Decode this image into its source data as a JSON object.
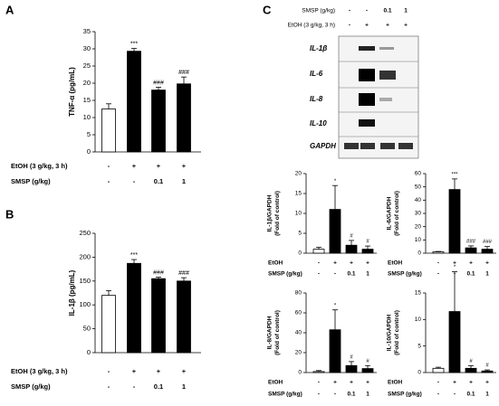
{
  "chart_data": [
    {
      "type": "bar",
      "panel": "A",
      "ylabel": [
        "TNF-α (pg/mL)"
      ],
      "values": [
        12.5,
        29.3,
        18,
        19.8
      ],
      "errors": [
        1.5,
        0.8,
        0.8,
        2
      ],
      "annotations": [
        null,
        "***",
        "###",
        "###"
      ],
      "colors": [
        "#ffffff",
        "#000000",
        "#000000",
        "#000000"
      ],
      "ylim": [
        0,
        35
      ],
      "yticks": [
        0,
        5,
        10,
        15,
        20,
        25,
        30,
        35
      ],
      "rows": [
        {
          "label": "EtOH (3 g/kg, 3 h)",
          "values": [
            "-",
            "+",
            "+",
            "+"
          ]
        },
        {
          "label": "SMSP (g/kg)",
          "values": [
            "-",
            "-",
            "0.1",
            "1"
          ]
        }
      ]
    },
    {
      "type": "bar",
      "panel": "B",
      "ylabel": [
        "IL-1β (pg/mL)"
      ],
      "values": [
        120,
        187,
        155,
        150
      ],
      "errors": [
        10,
        8,
        3,
        7
      ],
      "annotations": [
        null,
        "***",
        "###",
        "###"
      ],
      "colors": [
        "#ffffff",
        "#000000",
        "#000000",
        "#000000"
      ],
      "ylim": [
        0,
        250
      ],
      "yticks": [
        0,
        50,
        100,
        150,
        200,
        250
      ],
      "rows": [
        {
          "label": "EtOH (3 g/kg, 3 h)",
          "values": [
            "-",
            "+",
            "+",
            "+"
          ]
        },
        {
          "label": "SMSP (g/kg)",
          "values": [
            "-",
            "-",
            "0.1",
            "1"
          ]
        }
      ]
    },
    {
      "type": "bar",
      "ylabel": [
        "IL-1β/GAPDH",
        "(Fold of control)"
      ],
      "values": [
        1,
        11,
        2,
        1
      ],
      "errors": [
        0.5,
        6,
        1.2,
        0.8
      ],
      "annotations": [
        null,
        "*",
        "#",
        "#"
      ],
      "colors": [
        "#ffffff",
        "#000000",
        "#000000",
        "#000000"
      ],
      "ylim": [
        0,
        20
      ],
      "yticks": [
        0,
        5,
        10,
        15,
        20
      ],
      "rows": [
        {
          "label": "EtOH",
          "values": [
            "-",
            "+",
            "+",
            "+"
          ]
        },
        {
          "label": "SMSP (g/kg)",
          "values": [
            "-",
            "-",
            "0.1",
            "1"
          ]
        }
      ]
    },
    {
      "type": "bar",
      "ylabel": [
        "IL-6/GAPDH",
        "(Fold of control)"
      ],
      "values": [
        1,
        48,
        4,
        3
      ],
      "errors": [
        0.3,
        8,
        1.5,
        2
      ],
      "annotations": [
        null,
        "***",
        "###",
        "###"
      ],
      "colors": [
        "#ffffff",
        "#000000",
        "#000000",
        "#000000"
      ],
      "ylim": [
        0,
        60
      ],
      "yticks": [
        0,
        10,
        20,
        30,
        40,
        50,
        60
      ],
      "rows": [
        {
          "label": "EtOH",
          "values": [
            "-",
            "+",
            "+",
            "+"
          ]
        },
        {
          "label": "SMSP (g/kg)",
          "values": [
            "-",
            "-",
            "0.1",
            "1"
          ]
        }
      ]
    },
    {
      "type": "bar",
      "ylabel": [
        "IL-8/GAPDH",
        "(Fold of control)"
      ],
      "values": [
        1,
        43,
        7,
        4
      ],
      "errors": [
        1,
        20,
        4,
        3
      ],
      "annotations": [
        null,
        "*",
        "#",
        "#"
      ],
      "colors": [
        "#ffffff",
        "#000000",
        "#000000",
        "#000000"
      ],
      "ylim": [
        0,
        80
      ],
      "yticks": [
        0,
        20,
        40,
        60,
        80
      ],
      "rows": [
        {
          "label": "EtOH",
          "values": [
            "-",
            "+",
            "+",
            "+"
          ]
        },
        {
          "label": "SMSP (g/kg)",
          "values": [
            "-",
            "-",
            "0.1",
            "1"
          ]
        }
      ]
    },
    {
      "type": "bar",
      "ylabel": [
        "IL-10/GAPDH",
        "(Fold of control)"
      ],
      "values": [
        0.8,
        11.5,
        0.8,
        0.3
      ],
      "errors": [
        0.2,
        7.5,
        0.5,
        0.2
      ],
      "annotations": [
        null,
        "*",
        "#",
        "#"
      ],
      "colors": [
        "#ffffff",
        "#000000",
        "#000000",
        "#000000"
      ],
      "ylim": [
        0,
        15
      ],
      "yticks": [
        0,
        5,
        10,
        15
      ],
      "rows": [
        {
          "label": "EtOH",
          "values": [
            "-",
            "+",
            "+",
            "+"
          ]
        },
        {
          "label": "SMSP (g/kg)",
          "values": [
            "-",
            "-",
            "0.1",
            "1"
          ]
        }
      ]
    }
  ],
  "blot": {
    "panel": "C",
    "rows": [
      {
        "label": "SMSP (g/kg)",
        "values": [
          "-",
          "-",
          "0.1",
          "1"
        ]
      },
      {
        "label": "EtOH (3 g/kg, 3 h)",
        "values": [
          "-",
          "+",
          "+",
          "+"
        ]
      }
    ],
    "bands": [
      "IL-1β",
      "IL-6",
      "IL-8",
      "IL-10",
      "GAPDH"
    ]
  }
}
